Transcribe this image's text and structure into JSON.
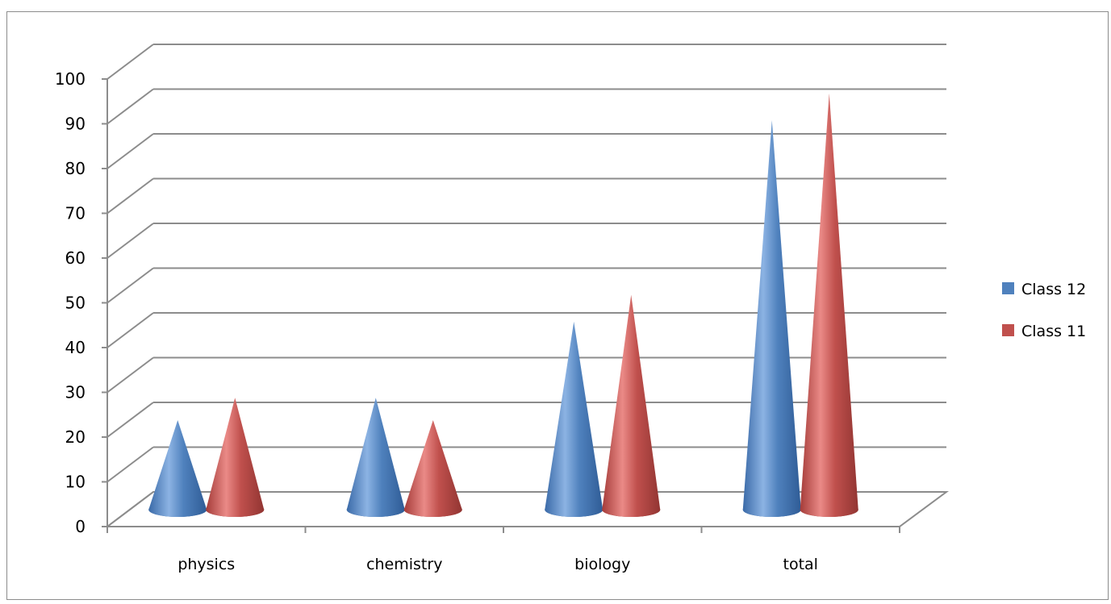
{
  "chart_data": {
    "type": "bar",
    "style": "3d-cone",
    "categories": [
      "physics",
      "chemistry",
      "biology",
      "total"
    ],
    "series": [
      {
        "name": "Class 12",
        "values": [
          20,
          25,
          42,
          87
        ],
        "color": "#4f81bd"
      },
      {
        "name": "Class 11",
        "values": [
          25,
          20,
          48,
          93
        ],
        "color": "#c0504d"
      }
    ],
    "y_ticks": [
      "0",
      "10",
      "20",
      "30",
      "40",
      "50",
      "60",
      "70",
      "80",
      "90",
      "100"
    ],
    "ylim": [
      0,
      100
    ],
    "grid": true,
    "legend_position": "right"
  }
}
